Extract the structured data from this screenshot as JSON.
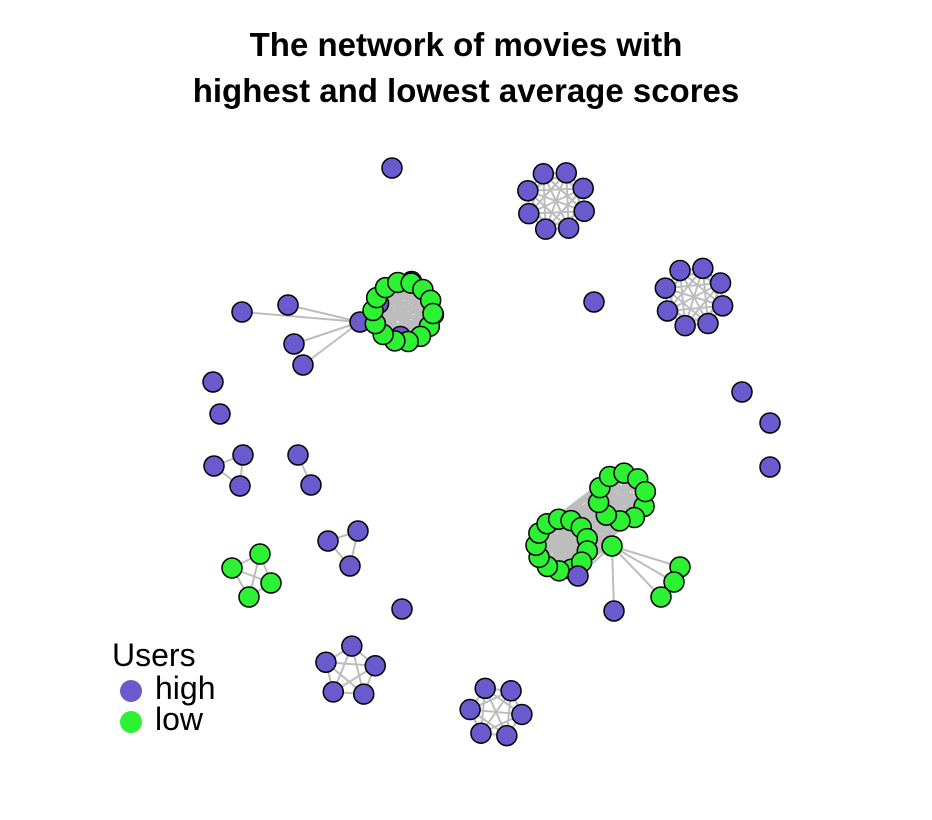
{
  "title_line1": "The network of movies with",
  "title_line2": "highest and lowest average scores",
  "legend": {
    "title": "Users",
    "items": [
      {
        "label": "high",
        "color": "#6a5acd"
      },
      {
        "label": "low",
        "color": "#2cf233"
      }
    ]
  },
  "colors": {
    "high": "#6a5acd",
    "low": "#2cf233",
    "edge": "#bdbdbd",
    "node_stroke": "#000000"
  }
}
